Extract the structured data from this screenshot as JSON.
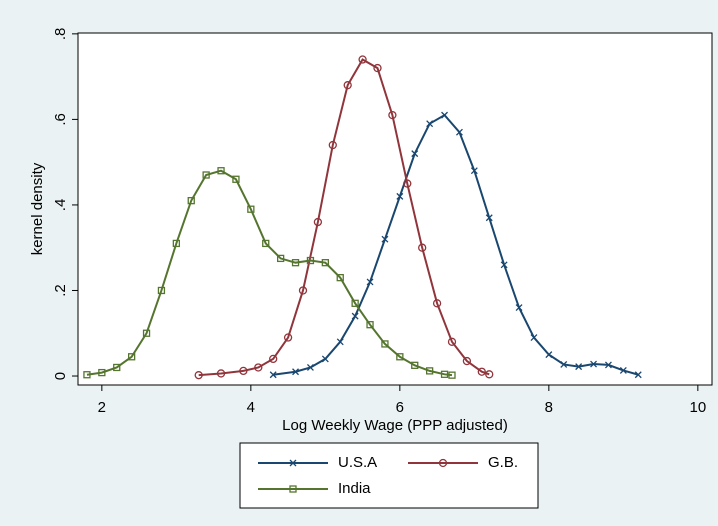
{
  "chart_data": {
    "type": "line",
    "xlabel": "Log Weekly Wage (PPP adjusted)",
    "ylabel": "kernel density",
    "xlim": [
      1.68,
      10.19
    ],
    "ylim": [
      -0.021,
      0.802
    ],
    "xticks": [
      2,
      4,
      6,
      8,
      10
    ],
    "yticks": [
      0,
      {
        "value": 0.2,
        "label": ".2"
      },
      {
        "value": 0.4,
        "label": ".4"
      },
      {
        "value": 0.6,
        "label": ".6"
      },
      {
        "value": 0.8,
        "label": ".8"
      }
    ],
    "legend": "bottom",
    "series": [
      {
        "name": "U.S.A",
        "color": "#1a476f",
        "marker": "x",
        "x": [
          4.3,
          4.6,
          4.8,
          5.0,
          5.2,
          5.4,
          5.6,
          5.8,
          6.0,
          6.2,
          6.4,
          6.6,
          6.8,
          7.0,
          7.2,
          7.4,
          7.6,
          7.8,
          8.0,
          8.2,
          8.4,
          8.6,
          8.8,
          9.0,
          9.2
        ],
        "values": [
          0.003,
          0.01,
          0.02,
          0.04,
          0.08,
          0.14,
          0.22,
          0.32,
          0.42,
          0.52,
          0.59,
          0.61,
          0.57,
          0.48,
          0.37,
          0.26,
          0.16,
          0.09,
          0.05,
          0.027,
          0.022,
          0.028,
          0.026,
          0.013,
          0.003
        ]
      },
      {
        "name": "G.B.",
        "color": "#90353b",
        "marker": "circle",
        "x": [
          3.3,
          3.6,
          3.9,
          4.1,
          4.3,
          4.5,
          4.7,
          4.9,
          5.1,
          5.3,
          5.5,
          5.7,
          5.9,
          6.1,
          6.3,
          6.5,
          6.7,
          6.9,
          7.1,
          7.2
        ],
        "values": [
          0.002,
          0.006,
          0.012,
          0.02,
          0.04,
          0.09,
          0.2,
          0.36,
          0.54,
          0.68,
          0.74,
          0.72,
          0.61,
          0.45,
          0.3,
          0.17,
          0.08,
          0.035,
          0.01,
          0.004
        ]
      },
      {
        "name": "India",
        "color": "#55752f",
        "marker": "square",
        "x": [
          1.8,
          2.0,
          2.2,
          2.4,
          2.6,
          2.8,
          3.0,
          3.2,
          3.4,
          3.6,
          3.8,
          4.0,
          4.2,
          4.4,
          4.6,
          4.8,
          5.0,
          5.2,
          5.4,
          5.6,
          5.8,
          6.0,
          6.2,
          6.4,
          6.6,
          6.7
        ],
        "values": [
          0.003,
          0.008,
          0.02,
          0.045,
          0.1,
          0.2,
          0.31,
          0.41,
          0.47,
          0.48,
          0.46,
          0.39,
          0.31,
          0.275,
          0.265,
          0.27,
          0.265,
          0.23,
          0.17,
          0.12,
          0.075,
          0.045,
          0.025,
          0.012,
          0.004,
          0.002
        ]
      }
    ]
  }
}
